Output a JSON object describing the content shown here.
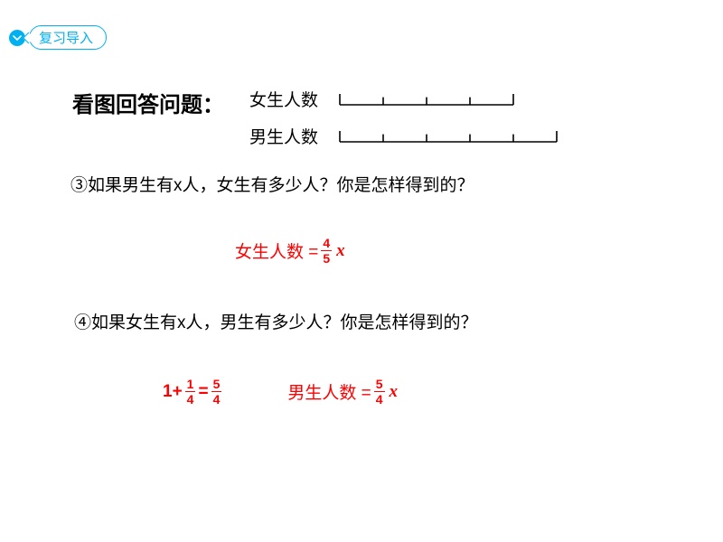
{
  "badge": {
    "label": "复习导入"
  },
  "title": "看图回答问题：",
  "legend": {
    "row1": "女生人数",
    "row2": "男生人数"
  },
  "bars": {
    "girls": {
      "segments": 4,
      "seg_width": 48,
      "height": 12,
      "stroke": "#000000"
    },
    "boys": {
      "segments": 5,
      "seg_width": 48,
      "height": 12,
      "stroke": "#000000"
    }
  },
  "q3": "③如果男生有x人，女生有多少人？你是怎样得到的？",
  "ans3": {
    "prefix": "女生人数 = ",
    "num": "4",
    "den": "5",
    "var": "x"
  },
  "q4": "④如果女生有x人，男生有多少人？你是怎样得到的？",
  "ans4a": {
    "prefix": "1+",
    "num1": "1",
    "den1": "4",
    "eq": " = ",
    "num2": "5",
    "den2": "4"
  },
  "ans4b": {
    "prefix": "男生人数 = ",
    "num": "5",
    "den": "4",
    "var": "x"
  },
  "colors": {
    "accent": "#00b0f0",
    "answer": "#ff0000",
    "text": "#000000"
  }
}
